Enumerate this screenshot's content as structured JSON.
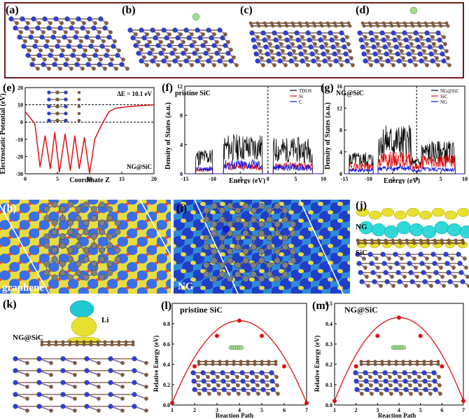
{
  "panels": {
    "a": "(a)",
    "b": "(b)",
    "c": "(c)",
    "d": "(d)",
    "e": "(e)",
    "f": "(f)",
    "g": "(g)",
    "h": "(h)",
    "i": "(i)",
    "j": "(j)",
    "k": "(k)",
    "l": "(l)",
    "m": "(m)"
  },
  "colors": {
    "frame": "#6b1e1e",
    "si_atom": "#2f3fd6",
    "c_atom": "#8a5a3a",
    "li_atom": "#9be08c",
    "curve_red": "#e01010",
    "tdos_black": "#000000",
    "si_red": "#e01010",
    "c_blue": "#1010e0",
    "ng_atom_gray": "#7a7a7a"
  },
  "panel_e": {
    "annotation": "ΔE = 10.1 eV",
    "corner_label": "NG@SiC",
    "chart_data": {
      "type": "line",
      "xlabel": "Coordinate Z",
      "ylabel": "Electrostatic Potential (eV)",
      "xlim": [
        0,
        20
      ],
      "ylim": [
        -30,
        20
      ],
      "xticks": [
        "0",
        "5",
        "10",
        "15",
        "20"
      ],
      "yticks": [
        "-30",
        "-20",
        "-10",
        "0",
        "10",
        "20"
      ],
      "dashed_levels": [
        10.1,
        0
      ],
      "x": [
        0,
        1.5,
        2.3,
        3.1,
        3.9,
        4.6,
        5.3,
        6.2,
        7.0,
        7.7,
        8.4,
        9.2,
        10.0,
        10.8,
        11.8,
        13,
        14,
        16,
        18,
        20
      ],
      "y": [
        6,
        -1,
        -26,
        -8,
        -27,
        -6,
        -29,
        -7,
        -28,
        -8,
        -27,
        -9,
        -30,
        -10,
        -2,
        6,
        8,
        9,
        9.5,
        10
      ]
    }
  },
  "panel_f": {
    "title": "pristine SiC",
    "chart_data": {
      "type": "line",
      "xlabel": "Energy (eV)",
      "ylabel": "Density of States (a.u.)",
      "xlim": [
        -15,
        10
      ],
      "ylim": [
        0,
        12
      ],
      "xticks": [
        "-15",
        "-10",
        "-5",
        "0",
        "5",
        "10"
      ],
      "yticks": [
        "0",
        "4",
        "8",
        "12"
      ],
      "legend": [
        "TDOS",
        "Si",
        "C"
      ],
      "legend_position": "top-right"
    }
  },
  "panel_g": {
    "title": "NG@SiC",
    "chart_data": {
      "type": "line",
      "xlabel": "Energy (eV)",
      "ylabel": "Density of States (a.u.)",
      "xlim": [
        -15,
        10
      ],
      "ylim": [
        0,
        16
      ],
      "xticks": [
        "-15",
        "-10",
        "-5",
        "0",
        "5",
        "10"
      ],
      "yticks": [
        "0",
        "4",
        "8",
        "12",
        "16"
      ],
      "legend": [
        "NG@SiC",
        "SiC",
        "NG"
      ],
      "legend_position": "top-right"
    }
  },
  "panel_h": {
    "label": "graphene"
  },
  "panel_i": {
    "label": "NG"
  },
  "panel_j": {
    "label_top": "NG",
    "label_bottom": "SiC"
  },
  "panel_k": {
    "label_left": "NG@SiC",
    "label_li": "Li"
  },
  "panel_l": {
    "title": "pristine SiC",
    "chart_data": {
      "type": "line",
      "xlabel": "Reaction Path",
      "ylabel": "Relative Energy (eV)",
      "xlim": [
        1,
        7
      ],
      "ylim": [
        0,
        1.0
      ],
      "xticks": [
        "1",
        "2",
        "3",
        "4",
        "5",
        "6",
        "7"
      ],
      "yticks": [
        "0.0",
        "0.2",
        "0.4",
        "0.6",
        "0.8"
      ],
      "x": [
        1,
        2,
        3,
        4,
        5,
        6,
        7
      ],
      "y": [
        0.02,
        0.38,
        0.68,
        0.83,
        0.68,
        0.38,
        0.02
      ]
    }
  },
  "panel_m": {
    "title": "NG@SiC",
    "chart_data": {
      "type": "line",
      "xlabel": "Reaction Path",
      "ylabel": "Relative Energy (eV)",
      "xlim": [
        1,
        7
      ],
      "ylim": [
        0,
        0.5
      ],
      "xticks": [
        "1",
        "2",
        "3",
        "4",
        "5",
        "6",
        "7"
      ],
      "yticks": [
        "0.0",
        "0.1",
        "0.2",
        "0.3",
        "0.4",
        "0.5"
      ],
      "x": [
        1,
        2,
        3,
        4,
        5,
        6,
        7
      ],
      "y": [
        0.02,
        0.19,
        0.34,
        0.43,
        0.34,
        0.19,
        0.02
      ]
    }
  }
}
